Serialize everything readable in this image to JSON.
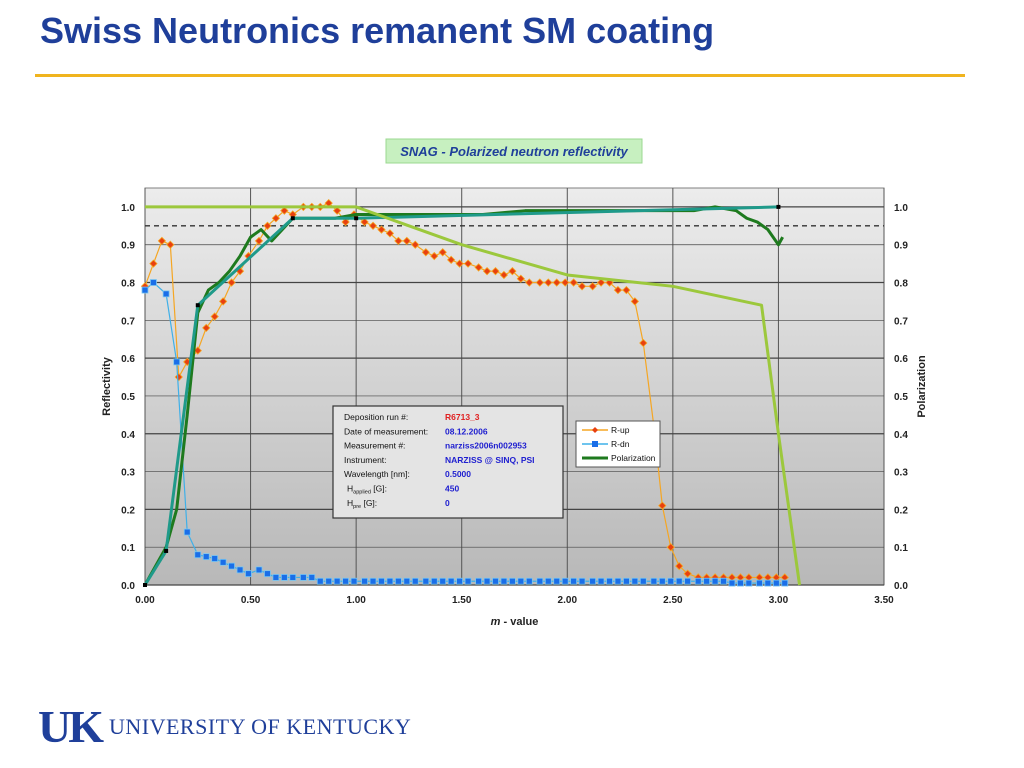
{
  "slide": {
    "title": "Swiss Neutronics remanent SM coating",
    "footer_mark": "UK",
    "footer_name": "UNIVERSITY OF KENTUCKY",
    "accent_color": "#f0b41e",
    "title_color": "#1f3f9a"
  },
  "chart_data": {
    "type": "line",
    "title": "SNAG - Polarized neutron reflectivity",
    "xlabel_italic": "m",
    "xlabel_rest": " - value",
    "ylabel_left": "Reflectivity",
    "ylabel_right": "Polarization",
    "xlim": [
      0,
      3.5
    ],
    "ylim": [
      0,
      1.05
    ],
    "x_ticks": [
      "0.00",
      "0.50",
      "1.00",
      "1.50",
      "2.00",
      "2.50",
      "3.00",
      "3.50"
    ],
    "y_ticks": [
      "0.0",
      "0.1",
      "0.2",
      "0.3",
      "0.4",
      "0.5",
      "0.6",
      "0.7",
      "0.8",
      "0.9",
      "1.0"
    ],
    "grid": true,
    "dashed_reference_y": 0.95,
    "info_box": [
      {
        "label": "Deposition run #:",
        "value": "R6713_3",
        "value_color": "#e02020"
      },
      {
        "label": "Date of measurement:",
        "value": "08.12.2006",
        "value_color": "#2020d0"
      },
      {
        "label": "Measurement #:",
        "value": "narziss2006n002953",
        "value_color": "#2020d0"
      },
      {
        "label": "Instrument:",
        "value": "NARZISS @ SINQ, PSI",
        "value_color": "#2020d0"
      },
      {
        "label": "Wavelength [nm]:",
        "value": "0.5000",
        "value_color": "#2020d0"
      },
      {
        "label": "H",
        "sub": "applied",
        "label_tail": " [G]:",
        "value": "450",
        "value_color": "#2020d0"
      },
      {
        "label": "H",
        "sub": "pre",
        "label_tail": " [G]:",
        "value": "0",
        "value_color": "#2020d0"
      }
    ],
    "legend": [
      {
        "name": "R-up",
        "color": "#f5a623",
        "marker": "diamond",
        "marker_fill": "#e84010"
      },
      {
        "name": "R-dn",
        "color": "#3fb0e8",
        "marker": "square",
        "marker_fill": "#1a6ee8"
      },
      {
        "name": "Polarization",
        "color": "#1e7a1e",
        "marker": "none"
      }
    ],
    "series": [
      {
        "name": "R-up",
        "color": "#f5a623",
        "marker": "diamond",
        "marker_fill": "#e84010",
        "x": [
          0.0,
          0.04,
          0.08,
          0.12,
          0.16,
          0.2,
          0.25,
          0.29,
          0.33,
          0.37,
          0.41,
          0.45,
          0.49,
          0.54,
          0.58,
          0.62,
          0.66,
          0.7,
          0.75,
          0.79,
          0.83,
          0.87,
          0.91,
          0.95,
          0.99,
          1.04,
          1.08,
          1.12,
          1.16,
          1.2,
          1.24,
          1.28,
          1.33,
          1.37,
          1.41,
          1.45,
          1.49,
          1.53,
          1.58,
          1.62,
          1.66,
          1.7,
          1.74,
          1.78,
          1.82,
          1.87,
          1.91,
          1.95,
          1.99,
          2.03,
          2.07,
          2.12,
          2.16,
          2.2,
          2.24,
          2.28,
          2.32,
          2.36,
          2.41,
          2.45,
          2.49,
          2.53,
          2.57,
          2.62,
          2.66,
          2.7,
          2.74,
          2.78,
          2.82,
          2.86,
          2.91,
          2.95,
          2.99,
          3.03
        ],
        "y": [
          0.79,
          0.85,
          0.91,
          0.9,
          0.55,
          0.59,
          0.62,
          0.68,
          0.71,
          0.75,
          0.8,
          0.83,
          0.87,
          0.91,
          0.95,
          0.97,
          0.99,
          0.98,
          1.0,
          1.0,
          1.0,
          1.01,
          0.99,
          0.96,
          0.98,
          0.96,
          0.95,
          0.94,
          0.93,
          0.91,
          0.91,
          0.9,
          0.88,
          0.87,
          0.88,
          0.86,
          0.85,
          0.85,
          0.84,
          0.83,
          0.83,
          0.82,
          0.83,
          0.81,
          0.8,
          0.8,
          0.8,
          0.8,
          0.8,
          0.8,
          0.79,
          0.79,
          0.8,
          0.8,
          0.78,
          0.78,
          0.75,
          0.64,
          0.42,
          0.21,
          0.1,
          0.05,
          0.03,
          0.02,
          0.02,
          0.02,
          0.02,
          0.02,
          0.02,
          0.02,
          0.02,
          0.02,
          0.02,
          0.02
        ]
      },
      {
        "name": "R-dn",
        "color": "#3fb0e8",
        "marker": "square",
        "marker_fill": "#1a6ee8",
        "x": [
          0.0,
          0.04,
          0.1,
          0.15,
          0.2,
          0.25,
          0.29,
          0.33,
          0.37,
          0.41,
          0.45,
          0.49,
          0.54,
          0.58,
          0.62,
          0.66,
          0.7,
          0.75,
          0.79,
          0.83,
          0.87,
          0.91,
          0.95,
          0.99,
          1.04,
          1.08,
          1.12,
          1.16,
          1.2,
          1.24,
          1.28,
          1.33,
          1.37,
          1.41,
          1.45,
          1.49,
          1.53,
          1.58,
          1.62,
          1.66,
          1.7,
          1.74,
          1.78,
          1.82,
          1.87,
          1.91,
          1.95,
          1.99,
          2.03,
          2.07,
          2.12,
          2.16,
          2.2,
          2.24,
          2.28,
          2.32,
          2.36,
          2.41,
          2.45,
          2.49,
          2.53,
          2.57,
          2.62,
          2.66,
          2.7,
          2.74,
          2.78,
          2.82,
          2.86,
          2.91,
          2.95,
          2.99,
          3.03
        ],
        "y": [
          0.78,
          0.8,
          0.77,
          0.59,
          0.14,
          0.08,
          0.075,
          0.07,
          0.06,
          0.05,
          0.04,
          0.03,
          0.04,
          0.03,
          0.02,
          0.02,
          0.02,
          0.02,
          0.02,
          0.01,
          0.01,
          0.01,
          0.01,
          0.01,
          0.01,
          0.01,
          0.01,
          0.01,
          0.01,
          0.01,
          0.01,
          0.01,
          0.01,
          0.01,
          0.01,
          0.01,
          0.01,
          0.01,
          0.01,
          0.01,
          0.01,
          0.01,
          0.01,
          0.01,
          0.01,
          0.01,
          0.01,
          0.01,
          0.01,
          0.01,
          0.01,
          0.01,
          0.01,
          0.01,
          0.01,
          0.01,
          0.01,
          0.01,
          0.01,
          0.01,
          0.01,
          0.01,
          0.01,
          0.01,
          0.01,
          0.01,
          0.005,
          0.005,
          0.005,
          0.005,
          0.005,
          0.005,
          0.005
        ]
      },
      {
        "name": "Polarization",
        "color": "#1e7a1e",
        "marker": "none",
        "x": [
          0.0,
          0.05,
          0.1,
          0.15,
          0.2,
          0.25,
          0.3,
          0.35,
          0.4,
          0.45,
          0.5,
          0.55,
          0.6,
          0.65,
          0.7,
          0.75,
          0.8,
          0.9,
          1.0,
          1.1,
          1.2,
          1.4,
          1.6,
          1.8,
          2.0,
          2.2,
          2.4,
          2.6,
          2.7,
          2.8,
          2.85,
          2.9,
          2.95,
          3.0,
          3.02
        ],
        "y": [
          0.0,
          0.05,
          0.1,
          0.2,
          0.45,
          0.72,
          0.78,
          0.8,
          0.83,
          0.87,
          0.92,
          0.94,
          0.91,
          0.94,
          0.97,
          0.97,
          0.97,
          0.97,
          0.98,
          0.98,
          0.98,
          0.98,
          0.98,
          0.99,
          0.99,
          0.99,
          0.99,
          0.99,
          1.0,
          0.99,
          0.97,
          0.96,
          0.94,
          0.9,
          0.92
        ]
      },
      {
        "name": "",
        "color": "#1f9a8a",
        "marker": "none",
        "x": [
          0.0,
          0.1,
          0.25,
          0.7,
          1.0,
          3.0
        ],
        "y": [
          0.0,
          0.09,
          0.74,
          0.97,
          0.97,
          1.0
        ]
      },
      {
        "name": "",
        "color": "#9cc83c",
        "marker": "none",
        "x": [
          0.0,
          1.0,
          1.2,
          1.5,
          2.0,
          2.5,
          2.92,
          3.0,
          3.1
        ],
        "y": [
          1.0,
          1.0,
          0.96,
          0.9,
          0.82,
          0.79,
          0.74,
          0.4,
          0.0
        ]
      }
    ]
  }
}
